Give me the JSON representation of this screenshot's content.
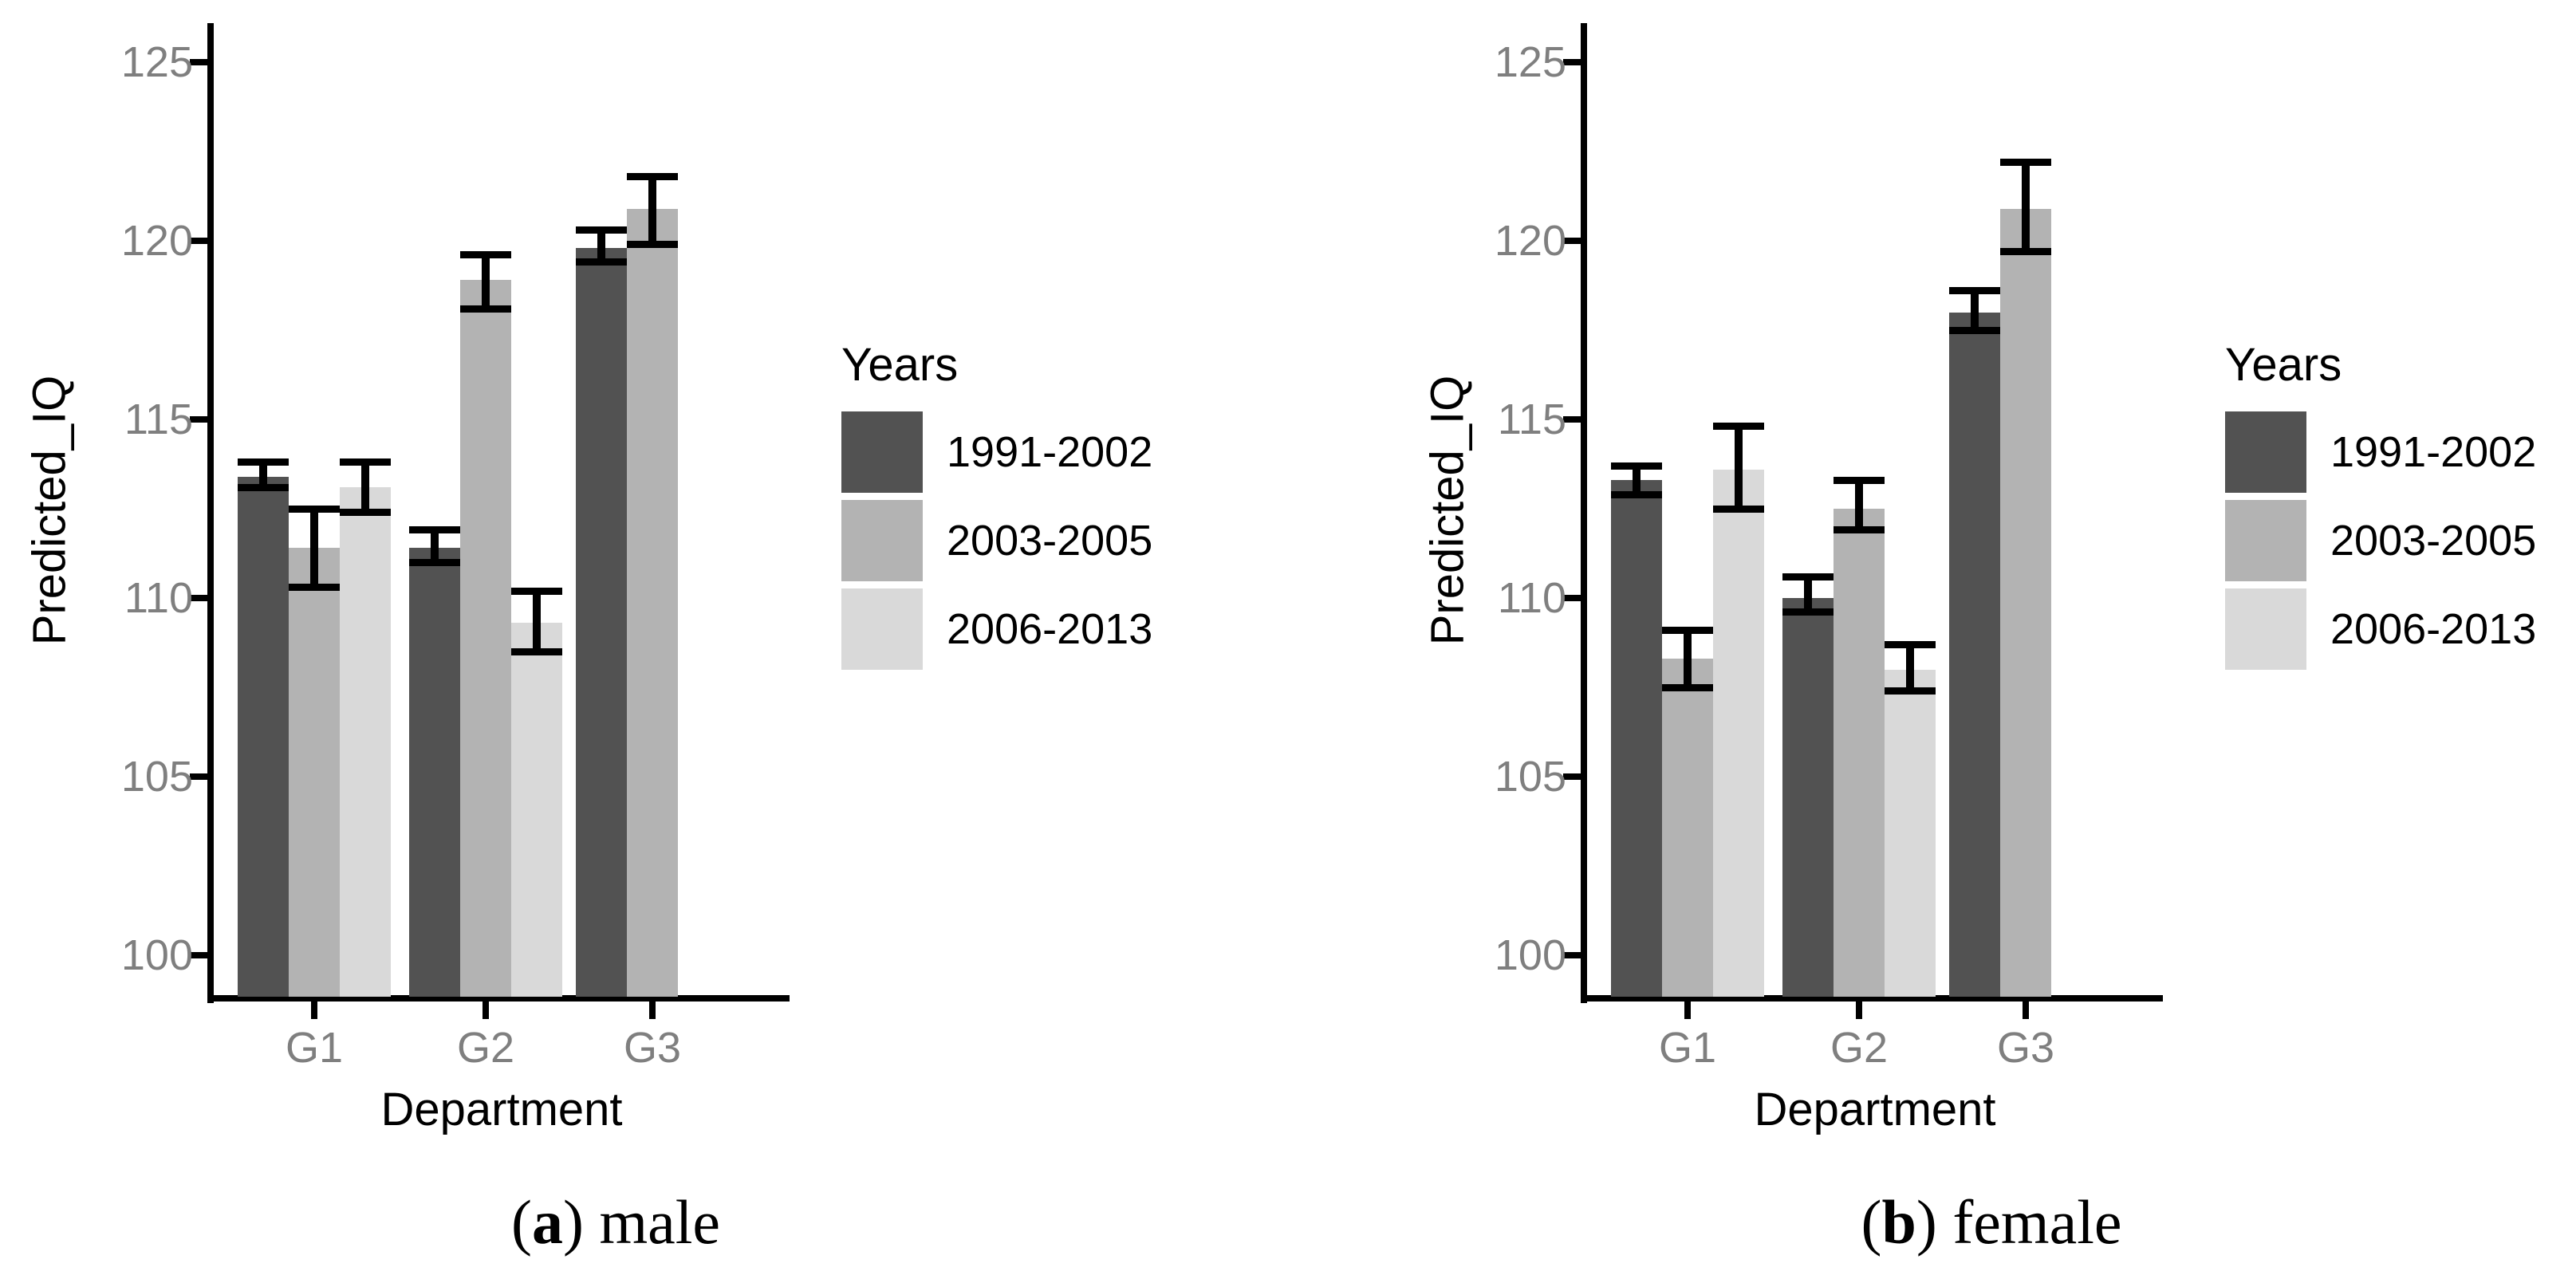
{
  "colors": {
    "series": [
      "#525252",
      "#b3b3b3",
      "#d9d9d9"
    ],
    "axis_line": "#000000",
    "tick_text": "#7f7f7f",
    "title_text": "#000000",
    "error_bar": "#000000",
    "background": "#ffffff"
  },
  "panels": [
    {
      "caption": {
        "open": "(",
        "letter": "a",
        "close": ")",
        "label": " male"
      },
      "y_axis_title": "Predicted_IQ",
      "x_axis_title": "Department",
      "legend_title": "Years"
    },
    {
      "caption": {
        "open": "(",
        "letter": "b",
        "close": ")",
        "label": " female"
      },
      "y_axis_title": "Predicted_IQ",
      "x_axis_title": "Department",
      "legend_title": "Years"
    }
  ],
  "chart_data": [
    {
      "type": "bar",
      "title": "(a) male",
      "categories": [
        "G1",
        "G2",
        "G3"
      ],
      "series": [
        {
          "name": "1991-2002",
          "values": [
            113.4,
            111.4,
            119.8
          ],
          "err_low": [
            113.1,
            111.0,
            119.4
          ],
          "err_high": [
            113.8,
            111.9,
            120.3
          ]
        },
        {
          "name": "2003-2005",
          "values": [
            111.4,
            118.9,
            120.9
          ],
          "err_low": [
            110.3,
            118.1,
            119.9
          ],
          "err_high": [
            112.5,
            119.6,
            121.8
          ]
        },
        {
          "name": "2006-2013",
          "values": [
            113.1,
            109.3,
            null
          ],
          "err_low": [
            112.4,
            108.5,
            null
          ],
          "err_high": [
            113.8,
            110.2,
            null
          ]
        }
      ],
      "xlabel": "Department",
      "ylabel": "Predicted_IQ",
      "ylim": [
        98.8,
        126.1
      ],
      "y_ticks": [
        100,
        105,
        110,
        115,
        120,
        125
      ],
      "legend_title": "Years",
      "legend_position": "right",
      "grid": false
    },
    {
      "type": "bar",
      "title": "(b) female",
      "categories": [
        "G1",
        "G2",
        "G3"
      ],
      "series": [
        {
          "name": "1991-2002",
          "values": [
            113.3,
            110.0,
            118.0
          ],
          "err_low": [
            112.9,
            109.6,
            117.5
          ],
          "err_high": [
            113.7,
            110.6,
            118.6
          ]
        },
        {
          "name": "2003-2005",
          "values": [
            108.3,
            112.5,
            120.9
          ],
          "err_low": [
            107.5,
            111.9,
            119.7
          ],
          "err_high": [
            109.1,
            113.3,
            122.2
          ]
        },
        {
          "name": "2006-2013",
          "values": [
            113.6,
            108.0,
            null
          ],
          "err_low": [
            112.5,
            107.4,
            null
          ],
          "err_high": [
            114.8,
            108.7,
            null
          ]
        }
      ],
      "xlabel": "Department",
      "ylabel": "Predicted_IQ",
      "ylim": [
        98.8,
        126.1
      ],
      "y_ticks": [
        100,
        105,
        110,
        115,
        120,
        125
      ],
      "legend_title": "Years",
      "legend_position": "right",
      "grid": false
    }
  ]
}
